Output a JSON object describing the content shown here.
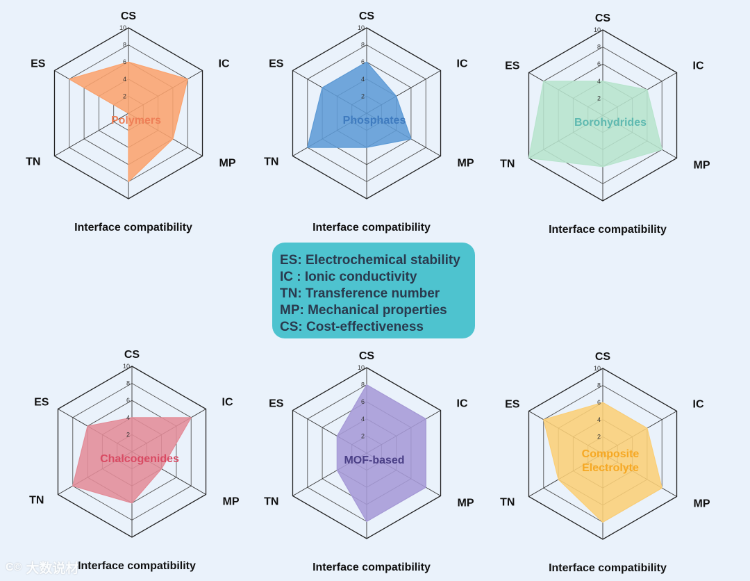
{
  "legend": {
    "lines": [
      "ES: Electrochemical stability",
      "IC : Ionic conductivity",
      "TN: Transference number",
      "MP: Mechanical properties",
      "CS: Cost-effectiveness"
    ]
  },
  "watermark": {
    "logo": "Ͼ©",
    "text": "大数说材"
  },
  "chart_data": [
    {
      "type": "radar",
      "title": "Polymers",
      "color": "#fba36e",
      "text_color": "#ee7f57",
      "axes": [
        "CS",
        "IC",
        "MP",
        "Interface compatibility",
        "TN",
        "ES"
      ],
      "values": [
        6,
        8,
        6,
        8,
        0,
        8
      ],
      "ticks": [
        "2",
        "4",
        "6",
        "8",
        "10"
      ],
      "range": [
        0,
        10
      ]
    },
    {
      "type": "radar",
      "title": "Phosphates",
      "color": "#5e9bd6",
      "text_color": "#3f7bbf",
      "axes": [
        "CS",
        "IC",
        "MP",
        "Interface compatibility",
        "TN",
        "ES"
      ],
      "values": [
        6,
        4,
        6,
        4,
        8,
        6
      ],
      "ticks": [
        "2",
        "4",
        "6",
        "8",
        "10"
      ],
      "range": [
        0,
        10
      ]
    },
    {
      "type": "radar",
      "title": "Borohydrides",
      "color": "#b7e4cd",
      "text_color": "#5fb9b0",
      "axes": [
        "CS",
        "IC",
        "MP",
        "Interface compatibility",
        "TN",
        "ES"
      ],
      "values": [
        4,
        6,
        8,
        6,
        10,
        8
      ],
      "ticks": [
        "2",
        "4",
        "6",
        "8",
        "10"
      ],
      "range": [
        0,
        10
      ]
    },
    {
      "type": "radar",
      "title": "Chalcogenides",
      "color": "#e38c98",
      "text_color": "#d94a63",
      "axes": [
        "CS",
        "IC",
        "MP",
        "Interface compatibility",
        "TN",
        "ES"
      ],
      "values": [
        4,
        8,
        4,
        6,
        8,
        6
      ],
      "ticks": [
        "2",
        "4",
        "6",
        "8",
        "10"
      ],
      "range": [
        0,
        10
      ]
    },
    {
      "type": "radar",
      "title": "MOF-based",
      "color": "#a69ad7",
      "text_color": "#4a3f86",
      "axes": [
        "CS",
        "IC",
        "MP",
        "Interface compatibility",
        "TN",
        "ES"
      ],
      "values": [
        8,
        8,
        8,
        8,
        4,
        4
      ],
      "ticks": [
        "2",
        "4",
        "6",
        "8",
        "10"
      ],
      "range": [
        0,
        10
      ]
    },
    {
      "type": "radar",
      "title": "Composite\nElectrolyte",
      "color": "#fbcf78",
      "text_color": "#f6a823",
      "axes": [
        "CS",
        "IC",
        "MP",
        "Interface compatibility",
        "TN",
        "ES"
      ],
      "values": [
        6,
        6,
        8,
        8,
        6,
        8
      ],
      "ticks": [
        "2",
        "4",
        "6",
        "8",
        "10"
      ],
      "range": [
        0,
        10
      ]
    }
  ]
}
